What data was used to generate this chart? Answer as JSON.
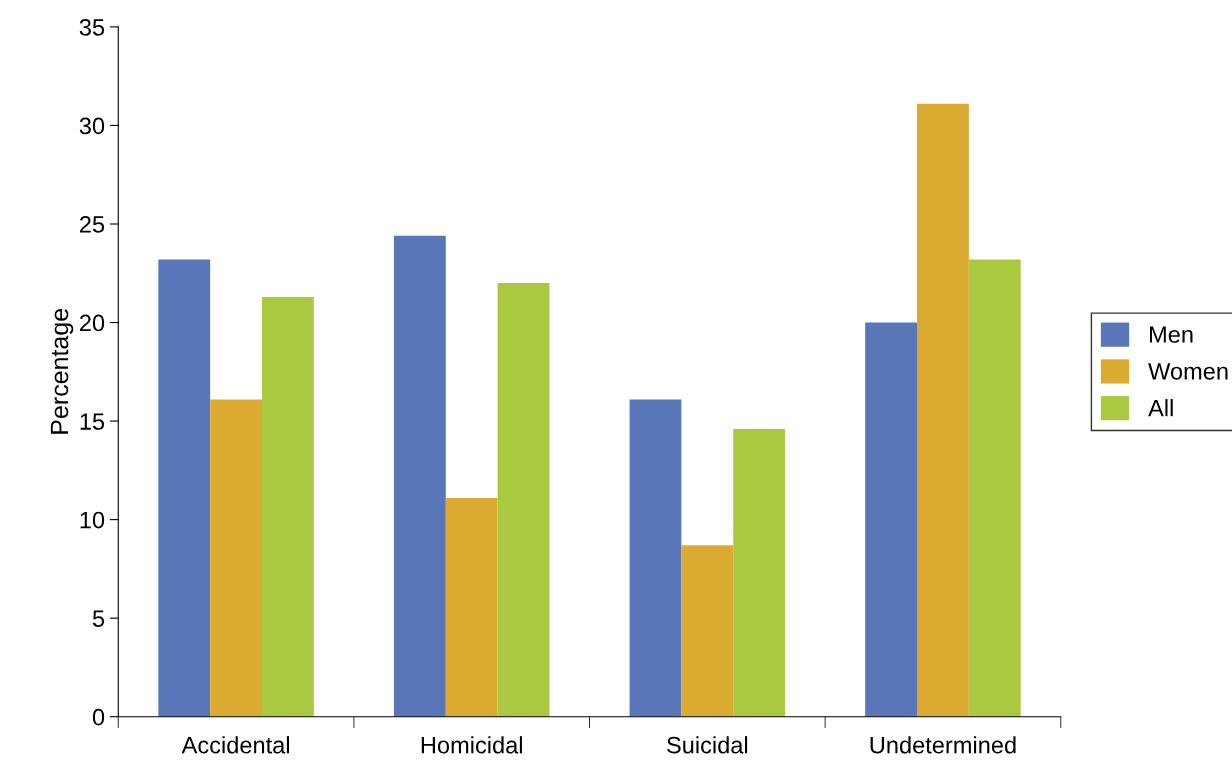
{
  "chart_data": {
    "type": "bar",
    "ylabel": "Percentage",
    "categories": [
      "Accidental",
      "Homicidal",
      "Suicidal",
      "Undetermined"
    ],
    "series": [
      {
        "name": "Men",
        "color": "#5876b8",
        "values": [
          23.2,
          24.4,
          16.1,
          20.0
        ]
      },
      {
        "name": "Women",
        "color": "#dbab31",
        "values": [
          16.1,
          11.1,
          8.7,
          31.1
        ]
      },
      {
        "name": "All",
        "color": "#aac840",
        "values": [
          21.3,
          22.0,
          14.6,
          23.2
        ]
      }
    ],
    "ylim": [
      0,
      35
    ],
    "yticks": [
      0,
      5,
      10,
      15,
      20,
      25,
      30,
      35
    ],
    "grid": false,
    "legend": "right"
  }
}
